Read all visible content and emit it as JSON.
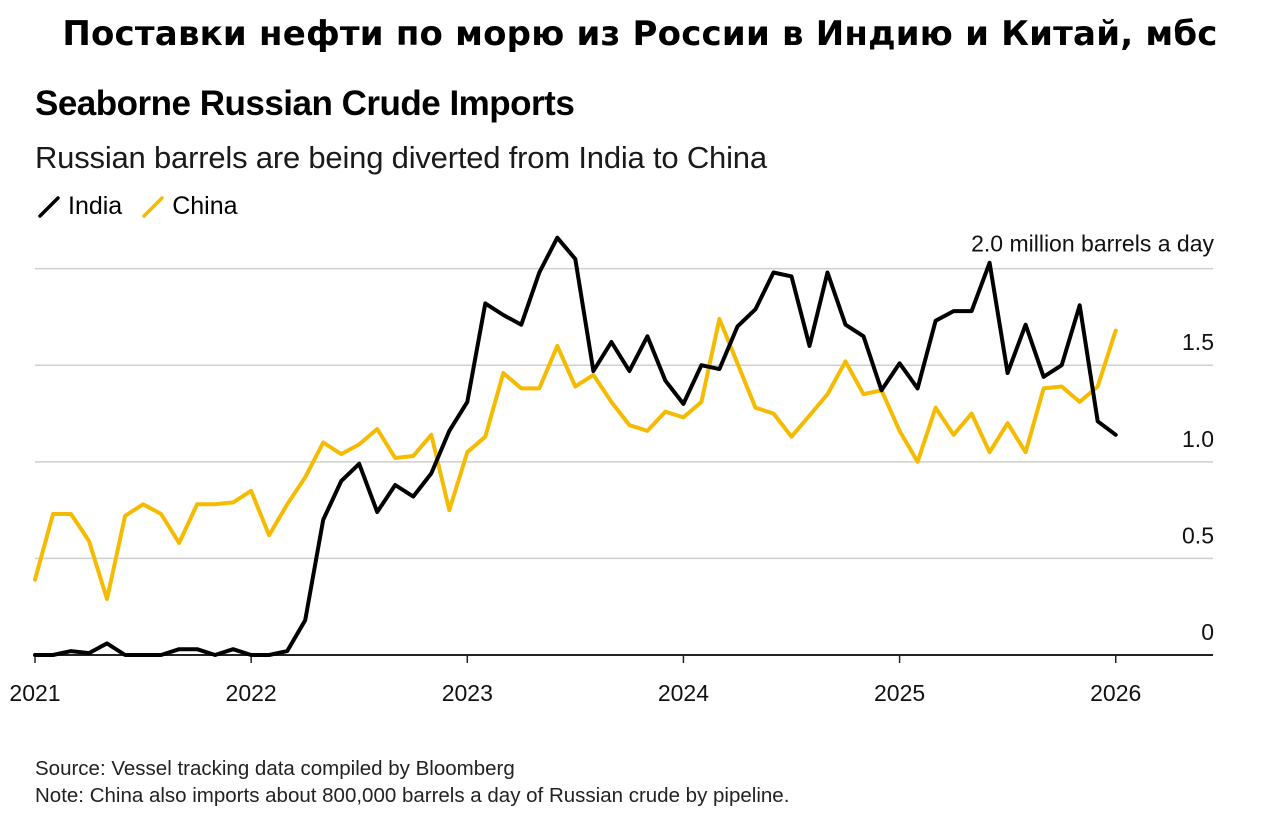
{
  "page": {
    "title": "Поставки нефти по морю из России в Индию и Китай, мбс"
  },
  "colors": {
    "india": "#000000",
    "china": "#f5bb00",
    "grid": "#cfcfcf",
    "axis": "#222222"
  },
  "legend": {
    "india_label": "India",
    "china_label": "China"
  },
  "footer": {
    "source": "Source: Vessel tracking data compiled by Bloomberg",
    "note": "Note: China also imports about 800,000 barrels a day of Russian crude by pipeline."
  },
  "chart_data": {
    "type": "line",
    "title": "Seaborne Russian Crude Imports",
    "subtitle": "Russian barrels are being diverted from India to China",
    "unit_label": "2.0 million barrels a day",
    "xlabel": "",
    "ylabel": "",
    "xlim": [
      2021.0,
      2026.45
    ],
    "ylim": [
      0,
      2.2
    ],
    "x_ticks": [
      {
        "value": 2021,
        "label": "2021"
      },
      {
        "value": 2022,
        "label": "2022"
      },
      {
        "value": 2023,
        "label": "2023"
      },
      {
        "value": 2024,
        "label": "2024"
      },
      {
        "value": 2025,
        "label": "2025"
      },
      {
        "value": 2026,
        "label": "2026"
      }
    ],
    "y_ticks": [
      {
        "value": 0,
        "label": "0"
      },
      {
        "value": 0.5,
        "label": "0.5"
      },
      {
        "value": 1.0,
        "label": "1.0"
      },
      {
        "value": 1.5,
        "label": "1.5"
      },
      {
        "value": 2.0,
        "label": ""
      }
    ],
    "grid": true,
    "legend_position": "top-left",
    "x_start": 2021.0,
    "x_step": 0.08333,
    "series": [
      {
        "name": "India",
        "key": "india",
        "values": [
          0,
          0,
          0.02,
          0.01,
          0.06,
          0,
          0,
          0,
          0.03,
          0.03,
          0,
          0.03,
          0,
          0,
          0.02,
          0.18,
          0.7,
          0.9,
          0.99,
          0.74,
          0.88,
          0.82,
          0.94,
          1.16,
          1.31,
          1.82,
          1.76,
          1.71,
          1.98,
          2.16,
          2.05,
          1.47,
          1.62,
          1.47,
          1.65,
          1.42,
          1.3,
          1.5,
          1.48,
          1.7,
          1.79,
          1.98,
          1.96,
          1.6,
          1.98,
          1.71,
          1.65,
          1.37,
          1.51,
          1.38,
          1.73,
          1.78,
          1.78,
          2.03,
          1.46,
          1.71,
          1.44,
          1.5,
          1.81,
          1.21,
          1.14
        ]
      },
      {
        "name": "China",
        "key": "china",
        "values": [
          0.39,
          0.73,
          0.73,
          0.59,
          0.29,
          0.72,
          0.78,
          0.73,
          0.58,
          0.78,
          0.78,
          0.79,
          0.85,
          0.62,
          0.78,
          0.92,
          1.1,
          1.04,
          1.09,
          1.17,
          1.02,
          1.03,
          1.14,
          0.75,
          1.05,
          1.13,
          1.46,
          1.38,
          1.38,
          1.6,
          1.39,
          1.45,
          1.31,
          1.19,
          1.16,
          1.26,
          1.23,
          1.31,
          1.74,
          1.51,
          1.28,
          1.25,
          1.13,
          1.24,
          1.35,
          1.52,
          1.35,
          1.37,
          1.16,
          1.0,
          1.28,
          1.14,
          1.25,
          1.05,
          1.2,
          1.05,
          1.38,
          1.39,
          1.31,
          1.39,
          1.68
        ]
      }
    ]
  }
}
